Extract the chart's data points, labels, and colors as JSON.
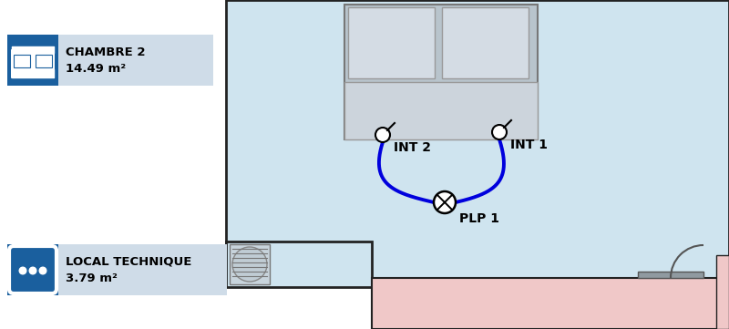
{
  "bg_color": "#ffffff",
  "room_bg": "#cfe4ef",
  "room_border": "#222222",
  "icon_blue": "#1a5f9e",
  "label_bg": "#cfdce8",
  "label1_title": "CHAMBRE 2",
  "label1_area": "14.49 m²",
  "label2_title": "LOCAL TECHNIQUE",
  "label2_area": "3.79 m²",
  "int1_label": "INT 1",
  "int2_label": "INT 2",
  "plp1_label": "PLP 1",
  "blue_wire": "#0000dd",
  "wire_lw": 2.8,
  "bed_frame_color": "#b8c4cc",
  "bed_body_color": "#ccd4dc",
  "pillow_color": "#d4dce4",
  "pink_color": "#f0c8c8",
  "vent_color": "#b8c8d0",
  "door_color": "#909aa0"
}
